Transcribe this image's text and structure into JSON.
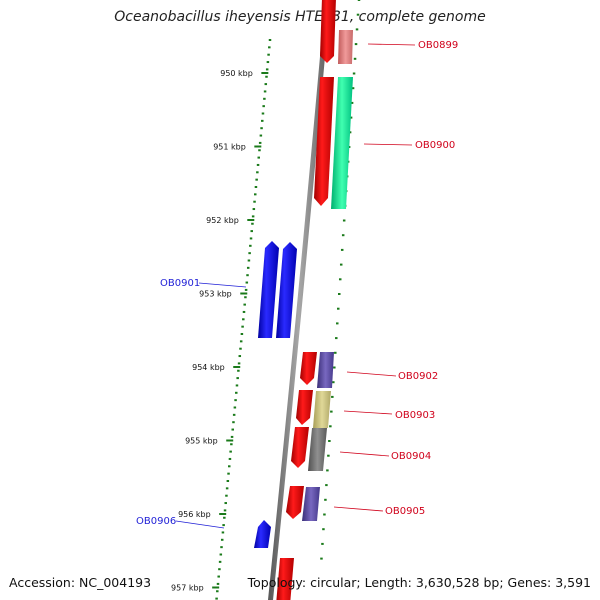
{
  "title": "Oceanobacillus iheyensis HTE831, complete genome",
  "footer": {
    "accession": "Accession: NC_004193",
    "summary": "Topology: circular; Length: 3,630,528 bp; Genes: 3,591"
  },
  "ticks": [
    {
      "label": "950 kbp",
      "kbp": 950
    },
    {
      "label": "951 kbp",
      "kbp": 951
    },
    {
      "label": "952 kbp",
      "kbp": 952
    },
    {
      "label": "953 kbp",
      "kbp": 953
    },
    {
      "label": "954 kbp",
      "kbp": 954
    },
    {
      "label": "955 kbp",
      "kbp": 955
    },
    {
      "label": "956 kbp",
      "kbp": 956
    },
    {
      "label": "957 kbp",
      "kbp": 957
    }
  ],
  "genes": [
    {
      "name": "OB0899",
      "strand": "reverse",
      "color": "#d0021b"
    },
    {
      "name": "OB0900",
      "strand": "reverse",
      "color": "#d0021b"
    },
    {
      "name": "OB0901",
      "strand": "forward",
      "color": "#1f1fd6"
    },
    {
      "name": "OB0902",
      "strand": "reverse",
      "color": "#d0021b"
    },
    {
      "name": "OB0903",
      "strand": "reverse",
      "color": "#d0021b"
    },
    {
      "name": "OB0904",
      "strand": "reverse",
      "color": "#d0021b"
    },
    {
      "name": "OB0905",
      "strand": "reverse",
      "color": "#d0021b"
    },
    {
      "name": "OB0906",
      "strand": "forward",
      "color": "#1f1fd6"
    }
  ],
  "colors": {
    "forward_gene": "#0000ff",
    "reverse_gene": "#ff0000",
    "cog_pink": "#e88080",
    "cog_green": "#00e890",
    "cog_purple": "#55459a",
    "cog_khaki": "#c8bf78",
    "cog_gray": "#707070",
    "backbone": "#808080",
    "tick_marks": "#1a7a1a"
  }
}
